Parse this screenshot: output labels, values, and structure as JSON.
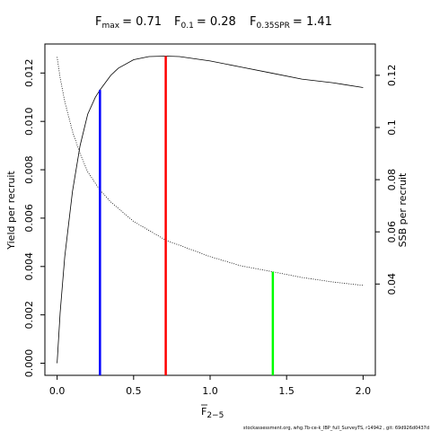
{
  "chart_data": {
    "type": "line",
    "title": {
      "fmax": {
        "symbol": "F",
        "sub": "max",
        "value": "= 0.71"
      },
      "f01": {
        "symbol": "F",
        "sub": "0.1",
        "value": "= 0.28"
      },
      "f035": {
        "symbol": "F",
        "sub": "0.35SPR",
        "value": "= 1.41"
      }
    },
    "xlabel": {
      "symbol": "F",
      "sub": "2−5"
    },
    "ylabel_left": "Yield per recruit",
    "ylabel_right": "SSB per recruit",
    "xlim": [
      -0.08,
      2.08
    ],
    "ylim_left": [
      -0.0005,
      0.0132
    ],
    "ylim_right": [
      0.005,
      0.132
    ],
    "x_ticks": [
      {
        "value": 0.0,
        "label": "0.0"
      },
      {
        "value": 0.5,
        "label": "0.5"
      },
      {
        "value": 1.0,
        "label": "1.0"
      },
      {
        "value": 1.5,
        "label": "1.5"
      },
      {
        "value": 2.0,
        "label": "2.0"
      }
    ],
    "y_left_ticks": [
      {
        "value": 0.0,
        "label": "0.000"
      },
      {
        "value": 0.002,
        "label": "0.002"
      },
      {
        "value": 0.004,
        "label": "0.004"
      },
      {
        "value": 0.006,
        "label": "0.006"
      },
      {
        "value": 0.008,
        "label": "0.008"
      },
      {
        "value": 0.01,
        "label": "0.010"
      },
      {
        "value": 0.012,
        "label": "0.012"
      }
    ],
    "y_right_ticks": [
      {
        "value": 0.04,
        "label": "0.04"
      },
      {
        "value": 0.06,
        "label": "0.06"
      },
      {
        "value": 0.08,
        "label": "0.08"
      },
      {
        "value": 0.1,
        "label": "0.1"
      },
      {
        "value": 0.12,
        "label": "0.12"
      }
    ],
    "series": [
      {
        "axis": "left",
        "style": "solid",
        "color": "#000000",
        "x": [
          0.0,
          0.02,
          0.05,
          0.1,
          0.15,
          0.2,
          0.25,
          0.28,
          0.35,
          0.4,
          0.5,
          0.6,
          0.71,
          0.8,
          1.0,
          1.2,
          1.4,
          1.6,
          1.8,
          2.0
        ],
        "y": [
          0.0,
          0.0021,
          0.0044,
          0.0071,
          0.009,
          0.0103,
          0.011,
          0.0113,
          0.0119,
          0.0122,
          0.01255,
          0.01268,
          0.0127,
          0.01268,
          0.0125,
          0.01225,
          0.012,
          0.01175,
          0.0116,
          0.0114
        ]
      },
      {
        "axis": "right",
        "style": "dotted",
        "color": "#000000",
        "x": [
          0.0,
          0.02,
          0.05,
          0.1,
          0.15,
          0.2,
          0.28,
          0.35,
          0.5,
          0.71,
          1.0,
          1.2,
          1.41,
          1.6,
          1.8,
          2.0
        ],
        "y": [
          0.127,
          0.119,
          0.11,
          0.0985,
          0.09,
          0.083,
          0.076,
          0.0715,
          0.064,
          0.0568,
          0.0505,
          0.047,
          0.0447,
          0.0425,
          0.0408,
          0.0395
        ]
      }
    ],
    "ref_lines": [
      {
        "x": 0.28,
        "color": "#0000ff",
        "axis": "left",
        "top": 0.0113
      },
      {
        "x": 0.71,
        "color": "#ff0000",
        "axis": "left",
        "top": 0.0127
      },
      {
        "x": 1.41,
        "color": "#00ff00",
        "axis": "right",
        "top": 0.0447
      }
    ],
    "grid": false,
    "legend": "none"
  },
  "footer": "stockassessment.org, whg.7b-ce-k_IBP_full_SurveyTS, r14942 , git: 69d926d0437d"
}
